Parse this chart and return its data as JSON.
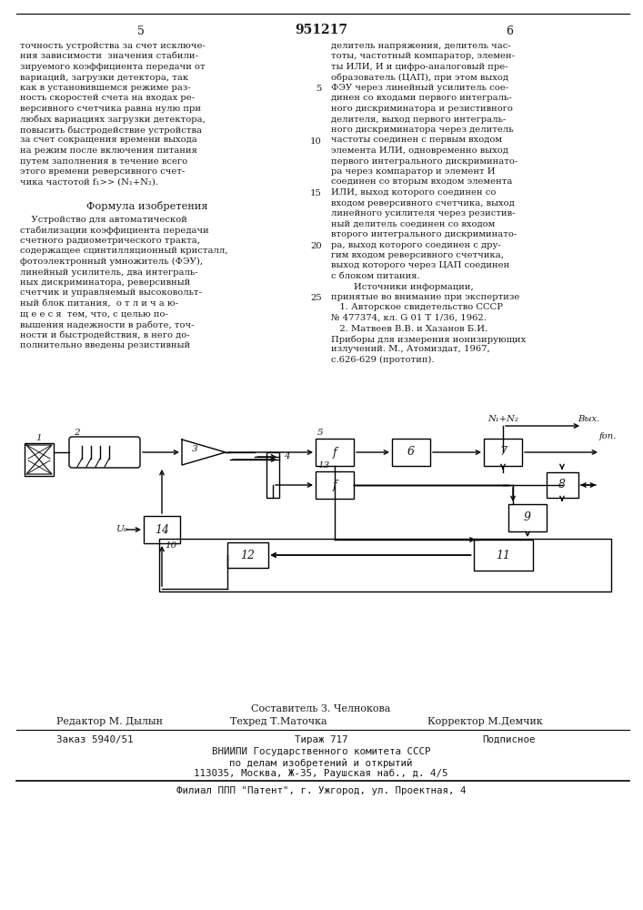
{
  "page_number_left": "5",
  "page_number_center": "951217",
  "page_number_right": "6",
  "left_col_lines": [
    "точность устройства за счет исключе-",
    "ния зависимости  значения стабили-",
    "зируемого коэффициента передачи от",
    "вариаций, загрузки детектора, так",
    "как в установившемся режиме раз-",
    "ность скоростей счета на входах ре-",
    "версивного счетчика равна нулю при",
    "любых вариациях загрузки детектора,",
    "повысить быстродействие устройства",
    "за счет сокращения времени выхода",
    "на режим после включения питания",
    "путем заполнения в течение всего",
    "этого времени реверсивного счет-",
    "чика частотой f₁>> (N₁+N₂)."
  ],
  "formula_title": "Формула изобретения",
  "formula_lines": [
    "    Устройство для автоматической",
    "стабилизации коэффициента передачи",
    "счетного радиометрического тракта,",
    "содержащее сцинтилляционный кристалл,",
    "фотоэлектронный умножитель (ФЭУ),",
    "линейный усилитель, два интеграль-",
    "ных дискриминатора, реверсивный",
    "счетчик и управляемый высоковольт-",
    "ный блок питания,  о т л и ч а ю-",
    "щ е е с я  тем, что, с целью по-",
    "вышения надежности в работе, точ-",
    "ности и быстродействия, в него до-",
    "полнительно введены резистивный"
  ],
  "right_col_lines": [
    "делитель напряжения, делитель час-",
    "тоты, частотный компаратор, элемен-",
    "ты ИЛИ, И и цифро-аналоговый пре-",
    "образователь (ЦАП), при этом выход",
    "ФЭУ через линейный усилитель сое-",
    "динен со входами первого интеграль-",
    "ного дискриминатора и резистивного",
    "делителя, выход первого интеграль-",
    "ного дискриминатора через делитель",
    "частоты соединен с первым входом",
    "элемента ИЛИ, одновременно выход",
    "первого интегрального дискриминато-",
    "ра через компаратор и элемент И",
    "соединен со вторым входом элемента",
    "ИЛИ, выход которого соединен со",
    "входом реверсивного счетчика, выход",
    "линейного усилителя через резистив-",
    "ный делитель соединен со входом",
    "второго интегрального дискриминато-",
    "ра, выход которого соединен с дру-",
    "гим входом реверсивного счетчика,",
    "выход которого через ЦАП соединен",
    "с блоком питания."
  ],
  "sources_lines": [
    "        Источники информации,",
    "принятые во внимание при экспертизе",
    "   1. Авторское свидетельство СССР",
    "№ 477374, кл. G 01 T 1/36, 1962.",
    "   2. Матвеев В.В. и Хазанов Б.И.",
    "Приборы для измерения ионизирующих",
    "излучений. М., Атомиздат, 1967,",
    "с.626-629 (прототип)."
  ],
  "line_numbers": [
    {
      "num": "5",
      "row": 5
    },
    {
      "num": "10",
      "row": 10
    },
    {
      "num": "15",
      "row": 15
    },
    {
      "num": "20",
      "row": 20
    },
    {
      "num": "25",
      "row": 25
    }
  ],
  "footer_composer": "Составитель З. Челнокова",
  "footer_editor": "Редактор М. Дылын",
  "footer_tech": "Техред Т.Маточка",
  "footer_corrector": "Корректор М.Демчик",
  "footer_order": "Заказ 5940/51",
  "footer_circulation": "Тираж 717",
  "footer_subscription": "Подписное",
  "footer_vniip1": "ВНИИПИ Государственного комитета СССР",
  "footer_vniip2": "по делам изобретений и открытий",
  "footer_vniip3": "113035, Москва, Ж-35, Раушская наб., д. 4/5",
  "footer_filial": "Филиал ППП \"Патент\", г. Ужгород, ул. Проектная, 4",
  "bg_color": "#ffffff",
  "text_color": "#1a1a1a"
}
